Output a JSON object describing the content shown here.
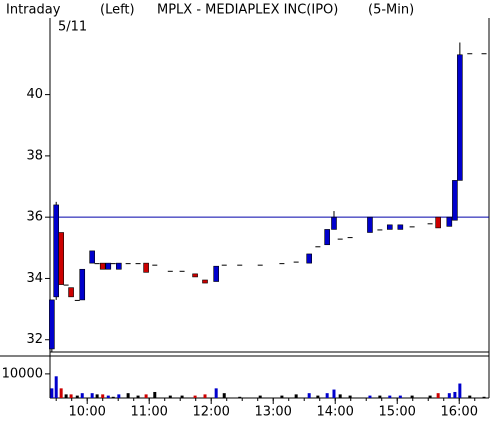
{
  "chart_data": {
    "type": "candlestick",
    "label": "Intraday",
    "date": "5/11",
    "axis_side": "(Left)",
    "title": "MPLX - MEDIAPLEX INC(IPO)",
    "interval": "(5-Min)",
    "x": [
      9.43,
      9.5,
      9.58,
      9.66,
      9.74,
      9.84,
      9.92,
      10.08,
      10.16,
      10.25,
      10.34,
      10.42,
      10.51,
      10.66,
      10.82,
      10.95,
      11.09,
      11.34,
      11.53,
      11.74,
      11.9,
      12.08,
      12.21,
      12.46,
      12.79,
      13.14,
      13.37,
      13.58,
      13.72,
      13.87,
      13.98,
      14.08,
      14.24,
      14.56,
      14.72,
      14.88,
      15.05,
      15.24,
      15.53,
      15.66,
      15.84,
      15.93,
      16.01,
      16.17,
      16.4
    ],
    "open": [
      31.7,
      33.4,
      35.5,
      33.8,
      33.7,
      33.3,
      33.3,
      34.5,
      34.5,
      34.5,
      34.3,
      34.5,
      34.3,
      34.5,
      34.5,
      34.5,
      34.45,
      34.25,
      34.25,
      34.15,
      33.95,
      33.9,
      34.45,
      34.45,
      34.45,
      34.5,
      34.55,
      34.5,
      35.05,
      35.1,
      35.6,
      35.3,
      35.35,
      35.5,
      35.6,
      35.6,
      35.6,
      35.7,
      35.8,
      36.0,
      35.7,
      35.9,
      37.2,
      41.35,
      41.35
    ],
    "high": [
      33.3,
      36.5,
      35.5,
      33.8,
      33.7,
      33.3,
      34.3,
      34.9,
      34.5,
      34.5,
      34.5,
      34.5,
      34.5,
      34.5,
      34.5,
      34.5,
      34.45,
      34.25,
      34.25,
      34.15,
      33.95,
      34.4,
      34.45,
      34.45,
      34.45,
      34.5,
      34.55,
      34.8,
      35.05,
      35.6,
      36.2,
      35.3,
      35.35,
      36.0,
      35.6,
      35.75,
      35.75,
      35.7,
      35.8,
      36.0,
      36.0,
      37.2,
      41.7,
      41.35,
      41.35
    ],
    "low": [
      31.6,
      33.3,
      33.8,
      33.8,
      33.4,
      33.3,
      33.3,
      34.5,
      34.5,
      34.3,
      34.3,
      34.5,
      34.3,
      34.5,
      34.5,
      34.2,
      34.45,
      34.25,
      34.25,
      34.05,
      33.85,
      33.9,
      34.45,
      34.45,
      34.45,
      34.5,
      34.55,
      34.5,
      35.05,
      35.1,
      35.6,
      35.3,
      35.35,
      35.5,
      35.6,
      35.6,
      35.6,
      35.7,
      35.8,
      35.65,
      35.7,
      35.9,
      37.2,
      41.35,
      41.35
    ],
    "close": [
      33.3,
      36.4,
      33.8,
      33.8,
      33.4,
      33.3,
      34.3,
      34.9,
      34.5,
      34.3,
      34.5,
      34.5,
      34.5,
      34.5,
      34.5,
      34.2,
      34.45,
      34.25,
      34.25,
      34.05,
      33.85,
      34.4,
      34.45,
      34.45,
      34.45,
      34.5,
      34.55,
      34.8,
      35.05,
      35.6,
      36.0,
      35.3,
      35.35,
      36.0,
      35.6,
      35.75,
      35.75,
      35.7,
      35.8,
      35.65,
      36.0,
      37.2,
      41.3,
      41.35,
      41.35
    ],
    "volume": [
      4000,
      9000,
      4000,
      1500,
      1500,
      1000,
      2000,
      2000,
      1500,
      1500,
      1000,
      500,
      1500,
      2000,
      1000,
      1500,
      2500,
      1000,
      1000,
      1000,
      1500,
      4000,
      2000,
      500,
      1000,
      1000,
      1500,
      2000,
      1000,
      2000,
      3500,
      1500,
      1000,
      1000,
      1000,
      1000,
      1000,
      1000,
      1000,
      2000,
      2000,
      2500,
      6000,
      1000,
      500
    ],
    "up_color": "#0000cc",
    "down_color": "#cc0000",
    "flat_color": "#000000",
    "reference_line": 36,
    "reference_color": "#0000aa",
    "xlim": [
      9.4,
      16.48
    ],
    "xticks": [
      {
        "value": 10,
        "label": "10:00"
      },
      {
        "value": 11,
        "label": "11:00"
      },
      {
        "value": 12,
        "label": "12:00"
      },
      {
        "value": 13,
        "label": "13:00"
      },
      {
        "value": 14,
        "label": "14:00"
      },
      {
        "value": 15,
        "label": "15:00"
      },
      {
        "value": 16,
        "label": "16:00"
      }
    ],
    "ylim": [
      31.6,
      42.5
    ],
    "yticks": [
      32,
      34,
      36,
      38,
      40
    ],
    "volume_ylim": [
      0,
      17000
    ],
    "volume_yticks": [
      10000
    ]
  }
}
